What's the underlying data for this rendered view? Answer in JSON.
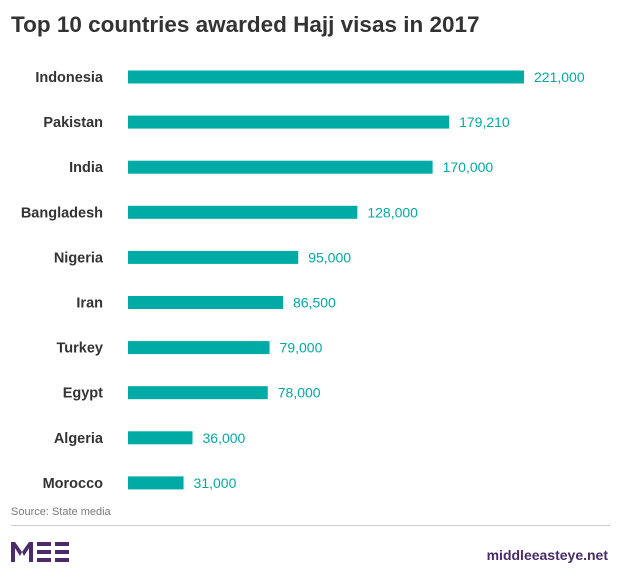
{
  "chart_data": {
    "type": "bar",
    "orientation": "horizontal",
    "title": "Top 10 countries awarded Hajj visas in 2017",
    "categories": [
      "Indonesia",
      "Pakistan",
      "India",
      "Bangladesh",
      "Nigeria",
      "Iran",
      "Turkey",
      "Egypt",
      "Algeria",
      "Morocco"
    ],
    "values": [
      221000,
      179210,
      170000,
      128000,
      95000,
      86500,
      79000,
      78000,
      36000,
      31000
    ],
    "value_labels": [
      "221,000",
      "179,210",
      "170,000",
      "128,000",
      "95,000",
      "86,500",
      "79,000",
      "78,000",
      "36,000",
      "31,000"
    ],
    "xlim": [
      0,
      221000
    ],
    "grid": false,
    "bar_color": "#00aba5",
    "label_color": "#00aba5"
  },
  "footer": {
    "source": "Source: State media",
    "site": "middleeasteye.net",
    "logo_color": "#4a2a6b"
  }
}
